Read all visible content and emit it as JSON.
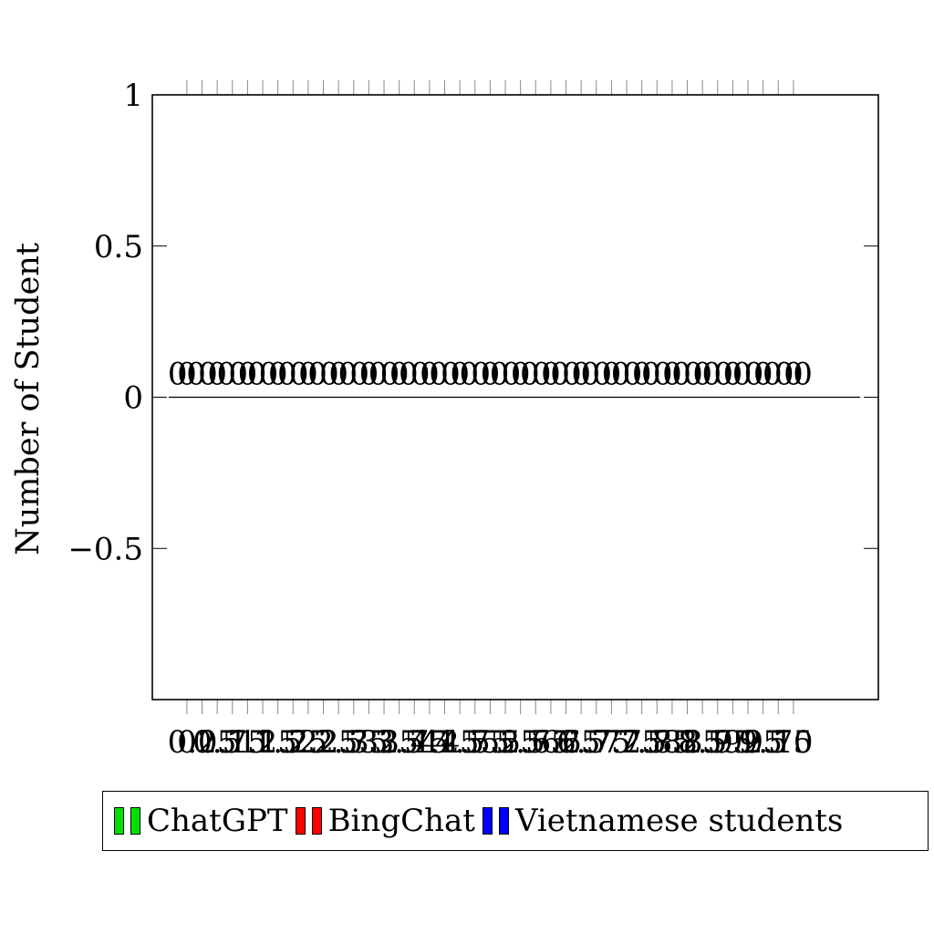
{
  "chart_data": {
    "type": "bar",
    "title": "",
    "xlabel": "",
    "ylabel": "Number of Student",
    "ylim": [
      -1,
      1
    ],
    "yticks": [
      -0.5,
      0,
      0.5,
      1
    ],
    "ytick_labels": [
      "−0.5",
      "0",
      "0.5",
      "1"
    ],
    "xlim": [
      -0.57,
      11.4
    ],
    "xticks": [
      0,
      0.25,
      0.5,
      0.75,
      1,
      1.25,
      1.5,
      1.75,
      2,
      2.25,
      2.5,
      2.75,
      3,
      3.25,
      3.5,
      3.75,
      4,
      4.25,
      4.5,
      4.75,
      5,
      5.25,
      5.5,
      5.75,
      6,
      6.25,
      6.5,
      6.75,
      7,
      7.25,
      7.5,
      7.75,
      8,
      8.25,
      8.5,
      8.75,
      9,
      9.25,
      9.5,
      9.75,
      10
    ],
    "xtick_labels": [
      "0",
      "0.25",
      "0.5",
      "0.75",
      "1",
      "1.25",
      "1.5",
      "1.75",
      "2",
      "2.25",
      "2.5",
      "2.75",
      "3",
      "3.25",
      "3.5",
      "3.75",
      "4",
      "4.25",
      "4.5",
      "4.75",
      "5",
      "5.25",
      "5.5",
      "5.75",
      "6",
      "6.25",
      "6.5",
      "6.75",
      "7",
      "7.25",
      "7.5",
      "7.75",
      "8",
      "8.25",
      "8.5",
      "8.75",
      "9",
      "9.25",
      "9.5",
      "9.75",
      "10"
    ],
    "series": [
      {
        "name": "ChatGPT",
        "color": "#00e000",
        "x": [
          0,
          0.5,
          1,
          1.5,
          2,
          2.5,
          3,
          3.5,
          4,
          4.5,
          5,
          5.5,
          6,
          6.5,
          7,
          7.5,
          8,
          8.5,
          9,
          9.5,
          10
        ],
        "values": [
          0,
          0,
          0,
          0,
          0,
          0,
          0,
          0,
          0,
          0,
          0,
          0,
          0,
          0,
          0,
          0,
          0,
          0,
          0,
          0,
          0
        ]
      },
      {
        "name": "BingChat",
        "color": "#ff0000",
        "x": [
          0,
          0.5,
          1,
          1.5,
          2,
          2.5,
          3,
          3.5,
          4,
          4.5,
          5,
          5.5,
          6,
          6.5,
          7,
          7.5,
          8,
          8.5,
          9,
          9.5,
          10
        ],
        "values": [
          0,
          0,
          0,
          0,
          0,
          0,
          0,
          0,
          0,
          0,
          0,
          0,
          0,
          0,
          0,
          0,
          0,
          0,
          0,
          0,
          0
        ]
      },
      {
        "name": "Vietnamese students",
        "color": "#0000ff",
        "x": [
          0,
          0.5,
          1,
          1.5,
          2,
          2.5,
          3,
          3.5,
          4,
          4.5,
          5,
          5.5,
          6,
          6.5,
          7,
          7.5,
          8,
          8.5,
          9,
          9.5,
          10
        ],
        "values": [
          0,
          0,
          0,
          0,
          0,
          0,
          0,
          0,
          0,
          0,
          0,
          0,
          0,
          0,
          0,
          0,
          0,
          0,
          0,
          0,
          0
        ]
      }
    ],
    "grid": false,
    "legend_position": "bottom"
  }
}
